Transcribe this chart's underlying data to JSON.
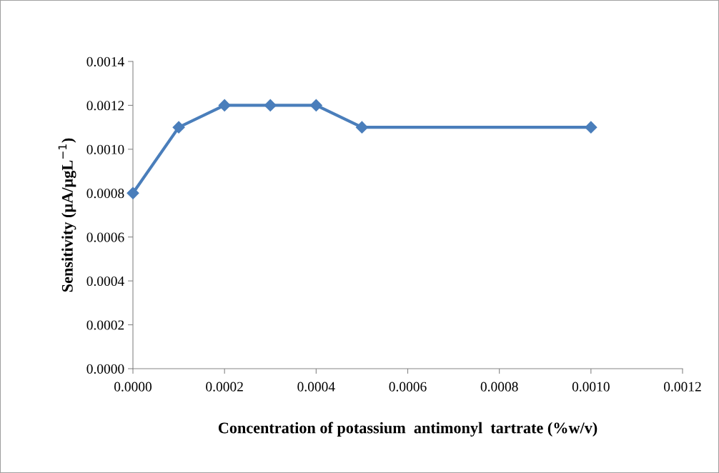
{
  "chart_data": {
    "type": "line",
    "xlabel": "Concentration of potassium  antimonyl  tartrate (%w/v)",
    "ylabel": "Sensitivity (µA/µgL$^{−1}$)",
    "x": [
      0.0,
      0.0001,
      0.0002,
      0.0003,
      0.0004,
      0.0005,
      0.001
    ],
    "series": [
      {
        "color": "#4a7ebb",
        "values": [
          0.0008,
          0.0011,
          0.0012,
          0.0012,
          0.0012,
          0.0011,
          0.0011
        ]
      }
    ],
    "marker": "diamond",
    "line_style": "solid",
    "grid": false,
    "xlim": [
      0.0,
      0.0012
    ],
    "xticks": [
      {
        "value": 0.0,
        "label": "0.0000"
      },
      {
        "value": 0.0002,
        "label": "0.0002"
      },
      {
        "value": 0.0004,
        "label": "0.0004"
      },
      {
        "value": 0.0006,
        "label": "0.0006"
      },
      {
        "value": 0.0008,
        "label": "0.0008"
      },
      {
        "value": 0.001,
        "label": "0.0010"
      },
      {
        "value": 0.0012,
        "label": "0.0012"
      }
    ],
    "ylim": [
      0.0,
      0.0014
    ],
    "yticks": [
      {
        "value": 0.0,
        "label": "0.0000"
      },
      {
        "value": 0.0002,
        "label": "0.0002"
      },
      {
        "value": 0.0004,
        "label": "0.0004"
      },
      {
        "value": 0.0006,
        "label": "0.0006"
      },
      {
        "value": 0.0008,
        "label": "0.0008"
      },
      {
        "value": 0.001,
        "label": "0.0010"
      },
      {
        "value": 0.0012,
        "label": "0.0012"
      },
      {
        "value": 0.0014,
        "label": "0.0014"
      }
    ]
  }
}
